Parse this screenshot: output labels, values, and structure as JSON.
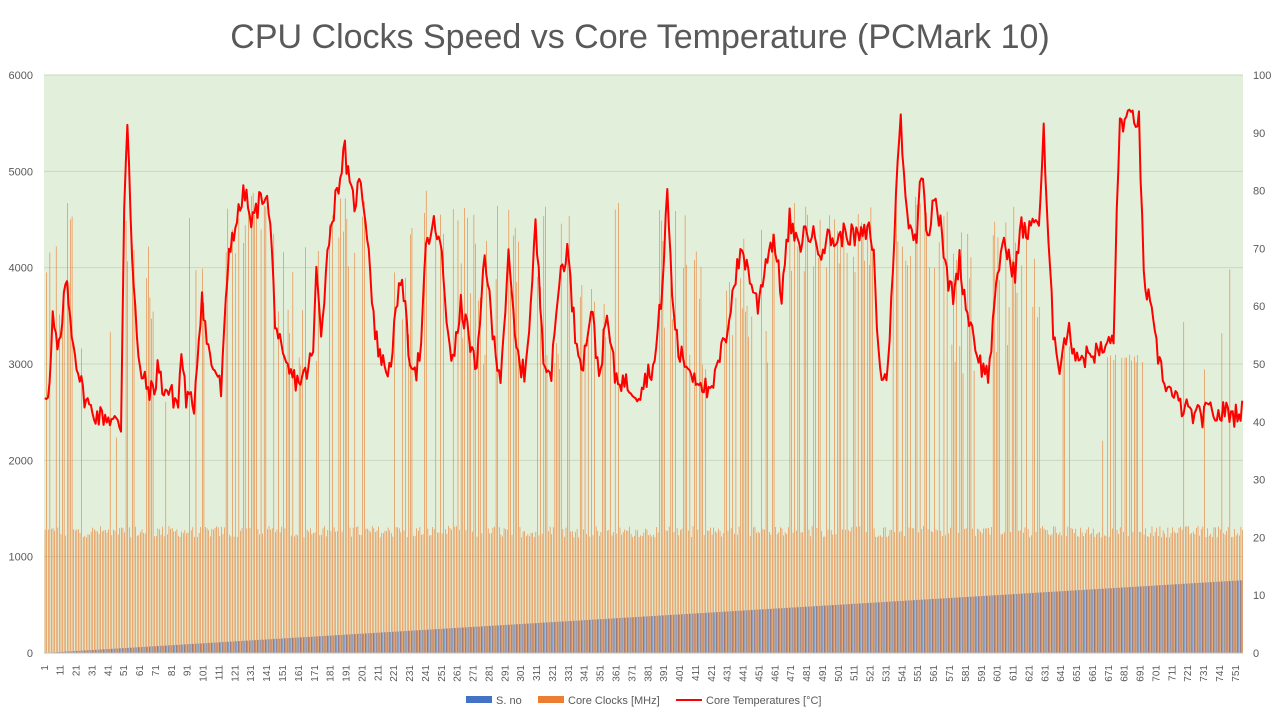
{
  "chart_data": {
    "type": "bar",
    "title": "CPU Clocks Speed vs Core Temperature (PCMark 10)",
    "xlabel": "",
    "ylabel": "",
    "y2label": "",
    "x_count": 755,
    "x_tick_start": 1,
    "x_tick_step": 10,
    "ylim": [
      0,
      6000
    ],
    "yticks": [
      0,
      1000,
      2000,
      3000,
      4000,
      5000,
      6000
    ],
    "y2lim": [
      0,
      100
    ],
    "y2ticks": [
      0,
      10,
      20,
      30,
      40,
      50,
      60,
      70,
      80,
      90,
      100
    ],
    "grid": true,
    "legend_position": "bottom",
    "plot_background": "#E2EFDA",
    "series": [
      {
        "name": "S. no",
        "type": "bar",
        "axis": "left",
        "color": "#4472C4",
        "values_rule": "equals x index (1 to 755)"
      },
      {
        "name": "Core Clocks [MHz]",
        "type": "bar",
        "axis": "left",
        "color": "#ED7D31",
        "baseline_range": [
          1200,
          1320
        ],
        "high_segments": [
          {
            "from": 1,
            "to": 12,
            "low": 3000,
            "high": 4400
          },
          {
            "from": 13,
            "to": 22,
            "low": 3600,
            "high": 4700
          },
          {
            "from": 50,
            "to": 57,
            "low": 3000,
            "high": 4800
          },
          {
            "from": 66,
            "to": 71,
            "low": 2900,
            "high": 4550
          },
          {
            "from": 95,
            "to": 102,
            "low": 2900,
            "high": 4000
          },
          {
            "from": 115,
            "to": 140,
            "low": 4000,
            "high": 4800
          },
          {
            "from": 145,
            "to": 172,
            "low": 2900,
            "high": 4500
          },
          {
            "from": 180,
            "to": 205,
            "low": 3900,
            "high": 4750
          },
          {
            "from": 220,
            "to": 232,
            "low": 2900,
            "high": 4700
          },
          {
            "from": 240,
            "to": 252,
            "low": 3900,
            "high": 4800
          },
          {
            "from": 260,
            "to": 300,
            "low": 2900,
            "high": 4700
          },
          {
            "from": 310,
            "to": 362,
            "low": 2900,
            "high": 4750
          },
          {
            "from": 388,
            "to": 418,
            "low": 2900,
            "high": 4650
          },
          {
            "from": 428,
            "to": 460,
            "low": 2900,
            "high": 4450
          },
          {
            "from": 470,
            "to": 522,
            "low": 3900,
            "high": 4700
          },
          {
            "from": 533,
            "to": 565,
            "low": 3900,
            "high": 4800
          },
          {
            "from": 566,
            "to": 586,
            "low": 2900,
            "high": 4600
          },
          {
            "from": 596,
            "to": 632,
            "low": 3000,
            "high": 4800
          },
          {
            "from": 640,
            "to": 652,
            "low": 2900,
            "high": 3800
          },
          {
            "from": 668,
            "to": 692,
            "low": 3000,
            "high": 3100
          }
        ]
      },
      {
        "name": "Core Temperatures [°C]",
        "type": "line",
        "axis": "right",
        "color": "#FF0000",
        "points": [
          [
            1,
            45
          ],
          [
            4,
            46
          ],
          [
            6,
            58
          ],
          [
            9,
            52
          ],
          [
            12,
            56
          ],
          [
            14,
            65
          ],
          [
            17,
            58
          ],
          [
            20,
            52
          ],
          [
            25,
            45
          ],
          [
            30,
            42
          ],
          [
            35,
            41
          ],
          [
            40,
            41
          ],
          [
            45,
            40
          ],
          [
            49,
            39
          ],
          [
            51,
            78
          ],
          [
            53,
            92
          ],
          [
            54,
            86
          ],
          [
            56,
            68
          ],
          [
            60,
            50
          ],
          [
            65,
            46
          ],
          [
            70,
            45
          ],
          [
            72,
            50
          ],
          [
            75,
            46
          ],
          [
            80,
            45
          ],
          [
            85,
            43
          ],
          [
            87,
            52
          ],
          [
            90,
            44
          ],
          [
            95,
            43
          ],
          [
            98,
            55
          ],
          [
            100,
            62
          ],
          [
            103,
            54
          ],
          [
            106,
            50
          ],
          [
            110,
            48
          ],
          [
            112,
            45
          ],
          [
            114,
            55
          ],
          [
            117,
            70
          ],
          [
            122,
            75
          ],
          [
            127,
            80
          ],
          [
            131,
            74
          ],
          [
            136,
            78
          ],
          [
            140,
            80
          ],
          [
            143,
            74
          ],
          [
            146,
            58
          ],
          [
            151,
            50
          ],
          [
            156,
            48
          ],
          [
            160,
            47
          ],
          [
            165,
            48
          ],
          [
            170,
            52
          ],
          [
            172,
            66
          ],
          [
            175,
            56
          ],
          [
            180,
            72
          ],
          [
            185,
            80
          ],
          [
            190,
            87
          ],
          [
            193,
            80
          ],
          [
            196,
            78
          ],
          [
            200,
            82
          ],
          [
            204,
            73
          ],
          [
            209,
            55
          ],
          [
            214,
            50
          ],
          [
            218,
            49
          ],
          [
            222,
            58
          ],
          [
            226,
            66
          ],
          [
            230,
            52
          ],
          [
            235,
            49
          ],
          [
            238,
            53
          ],
          [
            241,
            70
          ],
          [
            246,
            74
          ],
          [
            249,
            72
          ],
          [
            251,
            68
          ],
          [
            254,
            58
          ],
          [
            258,
            50
          ],
          [
            263,
            60
          ],
          [
            268,
            55
          ],
          [
            273,
            48
          ],
          [
            278,
            70
          ],
          [
            283,
            55
          ],
          [
            288,
            48
          ],
          [
            293,
            68
          ],
          [
            298,
            52
          ],
          [
            303,
            48
          ],
          [
            307,
            60
          ],
          [
            310,
            74
          ],
          [
            315,
            52
          ],
          [
            320,
            48
          ],
          [
            325,
            65
          ],
          [
            330,
            70
          ],
          [
            335,
            55
          ],
          [
            340,
            50
          ],
          [
            345,
            60
          ],
          [
            350,
            48
          ],
          [
            355,
            58
          ],
          [
            360,
            48
          ],
          [
            365,
            47
          ],
          [
            370,
            46
          ],
          [
            375,
            45
          ],
          [
            380,
            48
          ],
          [
            385,
            50
          ],
          [
            390,
            64
          ],
          [
            393,
            80
          ],
          [
            396,
            62
          ],
          [
            400,
            52
          ],
          [
            405,
            50
          ],
          [
            410,
            48
          ],
          [
            415,
            47
          ],
          [
            420,
            44
          ],
          [
            425,
            50
          ],
          [
            430,
            55
          ],
          [
            435,
            64
          ],
          [
            440,
            70
          ],
          [
            445,
            65
          ],
          [
            450,
            60
          ],
          [
            455,
            68
          ],
          [
            460,
            72
          ],
          [
            465,
            62
          ],
          [
            470,
            75
          ],
          [
            475,
            70
          ],
          [
            480,
            73
          ],
          [
            485,
            72
          ],
          [
            490,
            70
          ],
          [
            495,
            72
          ],
          [
            500,
            71
          ],
          [
            505,
            73
          ],
          [
            510,
            72
          ],
          [
            515,
            72
          ],
          [
            520,
            73
          ],
          [
            523,
            70
          ],
          [
            525,
            55
          ],
          [
            528,
            48
          ],
          [
            531,
            47
          ],
          [
            534,
            60
          ],
          [
            537,
            80
          ],
          [
            540,
            92
          ],
          [
            543,
            78
          ],
          [
            546,
            74
          ],
          [
            550,
            72
          ],
          [
            553,
            84
          ],
          [
            557,
            72
          ],
          [
            561,
            80
          ],
          [
            565,
            74
          ],
          [
            569,
            65
          ],
          [
            573,
            62
          ],
          [
            577,
            68
          ],
          [
            581,
            60
          ],
          [
            585,
            56
          ],
          [
            590,
            50
          ],
          [
            595,
            48
          ],
          [
            600,
            62
          ],
          [
            604,
            72
          ],
          [
            608,
            68
          ],
          [
            612,
            66
          ],
          [
            616,
            74
          ],
          [
            620,
            72
          ],
          [
            624,
            76
          ],
          [
            627,
            74
          ],
          [
            630,
            90
          ],
          [
            633,
            70
          ],
          [
            636,
            56
          ],
          [
            640,
            50
          ],
          [
            645,
            56
          ],
          [
            650,
            52
          ],
          [
            655,
            51
          ],
          [
            660,
            52
          ],
          [
            665,
            52
          ],
          [
            670,
            53
          ],
          [
            674,
            55
          ],
          [
            676,
            75
          ],
          [
            678,
            92
          ],
          [
            682,
            92
          ],
          [
            686,
            93
          ],
          [
            690,
            92
          ],
          [
            693,
            65
          ],
          [
            697,
            60
          ],
          [
            700,
            54
          ],
          [
            705,
            48
          ],
          [
            710,
            45
          ],
          [
            715,
            43
          ],
          [
            720,
            42
          ],
          [
            725,
            41
          ],
          [
            730,
            41
          ],
          [
            735,
            42
          ],
          [
            740,
            41
          ],
          [
            745,
            42
          ],
          [
            750,
            41
          ],
          [
            752,
            42
          ]
        ]
      }
    ]
  }
}
